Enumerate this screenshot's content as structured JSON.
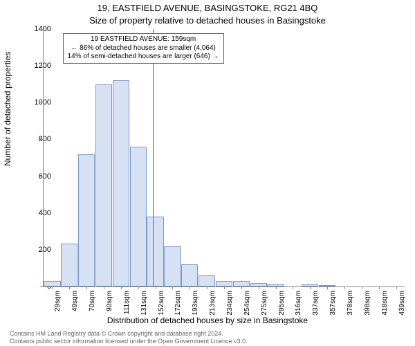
{
  "chart": {
    "type": "histogram",
    "title_line1": "19, EASTFIELD AVENUE, BASINGSTOKE, RG21 4BQ",
    "title_line2": "Size of property relative to detached houses in Basingstoke",
    "ylabel": "Number of detached properties",
    "xlabel": "Distribution of detached houses by size in Basingstoke",
    "ylim": [
      0,
      1400
    ],
    "ytick_step": 200,
    "yticks": [
      0,
      200,
      400,
      600,
      800,
      1000,
      1200,
      1400
    ],
    "xticks": [
      "29sqm",
      "49sqm",
      "70sqm",
      "90sqm",
      "111sqm",
      "131sqm",
      "152sqm",
      "172sqm",
      "193sqm",
      "213sqm",
      "234sqm",
      "254sqm",
      "275sqm",
      "295sqm",
      "316sqm",
      "337sqm",
      "357sqm",
      "378sqm",
      "398sqm",
      "418sqm",
      "439sqm"
    ],
    "values": [
      30,
      235,
      720,
      1100,
      1120,
      760,
      380,
      220,
      120,
      60,
      30,
      30,
      20,
      10,
      0,
      10,
      5,
      0,
      0,
      0,
      0
    ],
    "bar_fill": "#d6e1f3",
    "bar_border": "#7a9acb",
    "background_color": "#ffffff",
    "axis_color": "#888888",
    "refline": {
      "index_between": 6,
      "color": "#d03030",
      "label_line1": "19 EASTFIELD AVENUE: 159sqm",
      "label_line2": "← 86% of detached houses are smaller (4,064)",
      "label_line3": "14% of semi-detached houses are larger (646) →"
    },
    "footer_line1": "Contains HM Land Registry data © Crown copyright and database right 2024.",
    "footer_line2": "Contains public sector information licensed under the Open Government Licence v3.0.",
    "title_fontsize": 13,
    "label_fontsize": 12,
    "tick_fontsize": 11
  }
}
